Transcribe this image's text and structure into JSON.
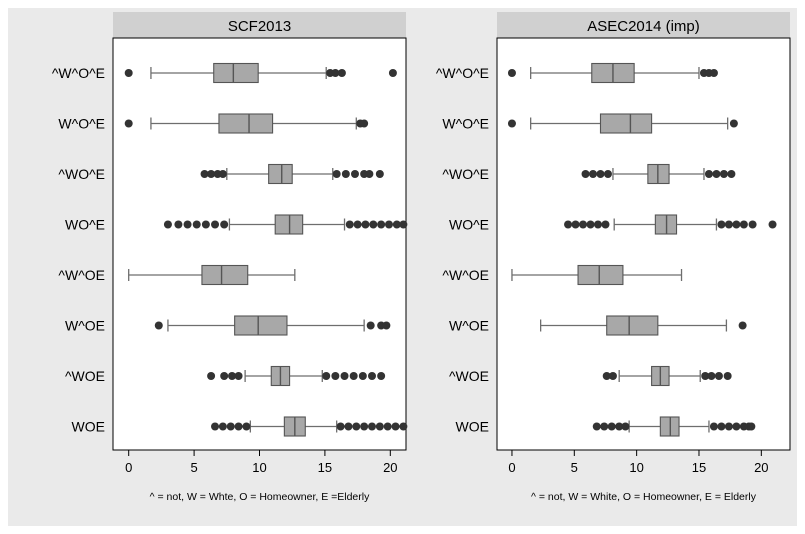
{
  "chart_data": [
    {
      "type": "box",
      "title": "SCF2013",
      "note": "^ = not, W = Whte, O = Homeowner, E =Elderly",
      "xlim": [
        -1.2,
        21.2
      ],
      "xticks": [
        "0",
        "5",
        "10",
        "15",
        "20"
      ],
      "grid": false,
      "categories": [
        "^W^O^E",
        "W^O^E",
        "^WO^E",
        "WO^E",
        "^W^OE",
        "W^OE",
        "^WOE",
        "WOE"
      ],
      "boxes": [
        {
          "category": "^W^O^E",
          "whisker_low": 1.7,
          "q1": 6.5,
          "median": 8.0,
          "q3": 9.9,
          "whisker_high": 15.1,
          "outliers": [
            0.0,
            15.4,
            15.8,
            16.3,
            20.2
          ]
        },
        {
          "category": "W^O^E",
          "whisker_low": 1.7,
          "q1": 6.9,
          "median": 9.2,
          "q3": 11.0,
          "whisker_high": 17.4,
          "outliers": [
            0.0,
            17.7,
            18.0
          ]
        },
        {
          "category": "^WO^E",
          "whisker_low": 7.5,
          "q1": 10.7,
          "median": 11.7,
          "q3": 12.5,
          "whisker_high": 15.6,
          "outliers": [
            5.8,
            6.3,
            6.8,
            7.2,
            15.9,
            16.6,
            17.3,
            18.0,
            18.4,
            19.2
          ]
        },
        {
          "category": "WO^E",
          "whisker_low": 7.7,
          "q1": 11.2,
          "median": 12.3,
          "q3": 13.3,
          "whisker_high": 16.5,
          "outliers": [
            3.0,
            3.8,
            4.5,
            5.2,
            5.9,
            6.6,
            7.3,
            16.9,
            17.5,
            18.1,
            18.7,
            19.3,
            19.9,
            20.5,
            21.0
          ]
        },
        {
          "category": "^W^OE",
          "whisker_low": 0.0,
          "q1": 5.6,
          "median": 7.1,
          "q3": 9.1,
          "whisker_high": 12.7,
          "outliers": []
        },
        {
          "category": "W^OE",
          "whisker_low": 3.0,
          "q1": 8.1,
          "median": 9.9,
          "q3": 12.1,
          "whisker_high": 18.0,
          "outliers": [
            2.3,
            18.5,
            19.3,
            19.7
          ]
        },
        {
          "category": "^WOE",
          "whisker_low": 8.9,
          "q1": 10.9,
          "median": 11.6,
          "q3": 12.3,
          "whisker_high": 14.8,
          "outliers": [
            6.3,
            7.3,
            7.9,
            8.4,
            15.1,
            15.8,
            16.5,
            17.2,
            17.9,
            18.6,
            19.3
          ]
        },
        {
          "category": "WOE",
          "whisker_low": 9.3,
          "q1": 11.9,
          "median": 12.7,
          "q3": 13.5,
          "whisker_high": 15.9,
          "outliers": [
            6.6,
            7.2,
            7.8,
            8.4,
            9.0,
            16.2,
            16.8,
            17.4,
            18.0,
            18.6,
            19.2,
            19.8,
            20.4,
            21.0
          ]
        }
      ]
    },
    {
      "type": "box",
      "title": "ASEC2014 (imp)",
      "note": "^ = not, W = White, O = Homeowner, E = Elderly",
      "xlim": [
        -1.2,
        22.3
      ],
      "xticks": [
        "0",
        "5",
        "10",
        "15",
        "20"
      ],
      "grid": false,
      "categories": [
        "^W^O^E",
        "W^O^E",
        "^WO^E",
        "WO^E",
        "^W^OE",
        "W^OE",
        "^WOE",
        "WOE"
      ],
      "boxes": [
        {
          "category": "^W^O^E",
          "whisker_low": 1.5,
          "q1": 6.4,
          "median": 8.1,
          "q3": 9.8,
          "whisker_high": 15.0,
          "outliers": [
            0.0,
            15.4,
            15.8,
            16.2
          ]
        },
        {
          "category": "W^O^E",
          "whisker_low": 1.5,
          "q1": 7.1,
          "median": 9.5,
          "q3": 11.2,
          "whisker_high": 17.3,
          "outliers": [
            0.0,
            17.8
          ]
        },
        {
          "category": "^WO^E",
          "whisker_low": 8.1,
          "q1": 10.9,
          "median": 11.7,
          "q3": 12.6,
          "whisker_high": 15.4,
          "outliers": [
            5.9,
            6.5,
            7.1,
            7.7,
            15.8,
            16.4,
            17.0,
            17.6
          ]
        },
        {
          "category": "WO^E",
          "whisker_low": 8.2,
          "q1": 11.5,
          "median": 12.4,
          "q3": 13.2,
          "whisker_high": 16.4,
          "outliers": [
            4.5,
            5.1,
            5.7,
            6.3,
            6.9,
            7.5,
            16.8,
            17.4,
            18.0,
            18.6,
            19.3,
            20.9
          ]
        },
        {
          "category": "^W^OE",
          "whisker_low": 0.0,
          "q1": 5.3,
          "median": 7.0,
          "q3": 8.9,
          "whisker_high": 13.6,
          "outliers": []
        },
        {
          "category": "W^OE",
          "whisker_low": 2.3,
          "q1": 7.6,
          "median": 9.4,
          "q3": 11.7,
          "whisker_high": 17.2,
          "outliers": [
            18.5
          ]
        },
        {
          "category": "^WOE",
          "whisker_low": 8.6,
          "q1": 11.2,
          "median": 11.9,
          "q3": 12.6,
          "whisker_high": 15.1,
          "outliers": [
            7.6,
            8.1,
            15.5,
            16.0,
            16.6,
            17.3
          ]
        },
        {
          "category": "WOE",
          "whisker_low": 9.4,
          "q1": 11.9,
          "median": 12.7,
          "q3": 13.4,
          "whisker_high": 15.8,
          "outliers": [
            6.8,
            7.4,
            8.0,
            8.6,
            9.1,
            16.2,
            16.8,
            17.4,
            18.0,
            18.6,
            19.0,
            19.2
          ]
        }
      ]
    }
  ]
}
